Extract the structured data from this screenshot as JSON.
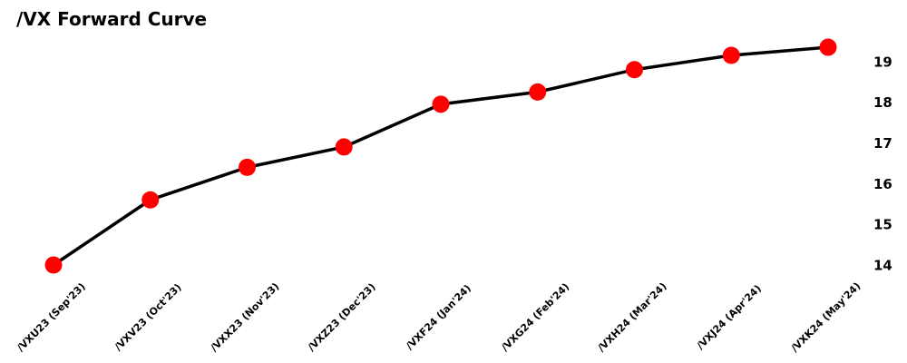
{
  "chart_data": {
    "type": "line",
    "title": "/VX Forward Curve",
    "categories": [
      "/VXU23 (Sep'23)",
      "/VXV23 (Oct'23)",
      "/VXX23 (Nov'23)",
      "/VXZ23 (Dec'23)",
      "/VXF24 (Jan'24)",
      "/VXG24 (Feb'24)",
      "/VXH24 (Mar'24)",
      "/VXJ24 (Apr'24)",
      "/VXK24 (May'24)"
    ],
    "values": [
      14.0,
      15.6,
      16.4,
      16.9,
      17.95,
      18.25,
      18.8,
      19.15,
      19.35
    ],
    "y_ticks": [
      14,
      15,
      16,
      17,
      18,
      19
    ],
    "ylim": [
      13.8,
      19.7
    ],
    "xlabel": "",
    "ylabel": "",
    "grid": false,
    "legend_position": "none",
    "y_axis_side": "right",
    "x_label_rotation_deg": 45,
    "line_color": "#000000",
    "marker_color": "#ff0000",
    "marker_shape": "circle"
  }
}
